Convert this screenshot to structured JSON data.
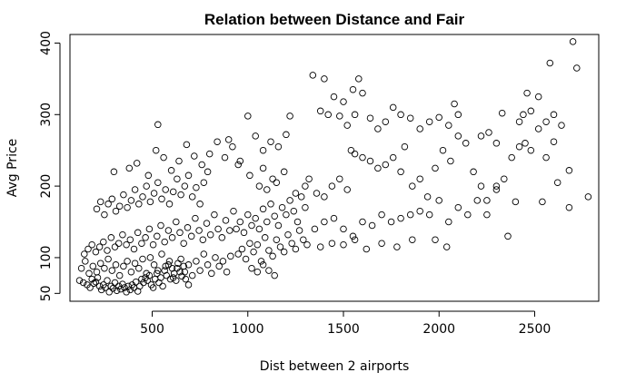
{
  "chart_data": {
    "type": "scatter",
    "title": "Relation between Distance and Fair",
    "xlabel": "Dist between 2 airports",
    "ylabel": "Avg Price",
    "xlim": [
      70,
      2835
    ],
    "ylim": [
      39,
      412
    ],
    "x_ticks": [
      500,
      1000,
      1500,
      2000,
      2500
    ],
    "y_ticks": [
      50,
      100,
      200,
      300,
      400
    ],
    "grid": false,
    "marker": "open-circle",
    "points": [
      [
        120,
        68
      ],
      [
        140,
        65
      ],
      [
        160,
        62
      ],
      [
        175,
        58
      ],
      [
        185,
        70
      ],
      [
        195,
        64
      ],
      [
        205,
        66
      ],
      [
        215,
        72
      ],
      [
        225,
        60
      ],
      [
        235,
        55
      ],
      [
        245,
        62
      ],
      [
        255,
        58
      ],
      [
        265,
        68
      ],
      [
        275,
        52
      ],
      [
        285,
        60
      ],
      [
        295,
        57
      ],
      [
        305,
        65
      ],
      [
        315,
        54
      ],
      [
        325,
        60
      ],
      [
        335,
        56
      ],
      [
        345,
        63
      ],
      [
        355,
        58
      ],
      [
        365,
        52
      ],
      [
        375,
        60
      ],
      [
        385,
        55
      ],
      [
        395,
        62
      ],
      [
        405,
        58
      ],
      [
        415,
        66
      ],
      [
        425,
        53
      ],
      [
        435,
        60
      ],
      [
        445,
        70
      ],
      [
        455,
        65
      ],
      [
        465,
        72
      ],
      [
        475,
        68
      ],
      [
        485,
        75
      ],
      [
        495,
        62
      ],
      [
        505,
        58
      ],
      [
        515,
        70
      ],
      [
        525,
        78
      ],
      [
        535,
        65
      ],
      [
        545,
        72
      ],
      [
        555,
        60
      ],
      [
        565,
        82
      ],
      [
        575,
        75
      ],
      [
        585,
        90
      ],
      [
        595,
        70
      ],
      [
        605,
        85
      ],
      [
        615,
        78
      ],
      [
        625,
        68
      ],
      [
        635,
        92
      ],
      [
        645,
        80
      ],
      [
        655,
        74
      ],
      [
        665,
        88
      ],
      [
        675,
        70
      ],
      [
        690,
        62
      ],
      [
        130,
        85
      ],
      [
        150,
        95
      ],
      [
        170,
        78
      ],
      [
        190,
        88
      ],
      [
        210,
        80
      ],
      [
        230,
        92
      ],
      [
        250,
        85
      ],
      [
        270,
        98
      ],
      [
        290,
        82
      ],
      [
        310,
        90
      ],
      [
        330,
        75
      ],
      [
        350,
        88
      ],
      [
        370,
        95
      ],
      [
        390,
        80
      ],
      [
        410,
        92
      ],
      [
        430,
        85
      ],
      [
        450,
        98
      ],
      [
        470,
        78
      ],
      [
        490,
        100
      ],
      [
        510,
        90
      ],
      [
        530,
        82
      ],
      [
        550,
        105
      ],
      [
        570,
        88
      ],
      [
        590,
        95
      ],
      [
        610,
        72
      ],
      [
        630,
        85
      ],
      [
        650,
        98
      ],
      [
        670,
        80
      ],
      [
        690,
        90
      ],
      [
        710,
        75
      ],
      [
        730,
        95
      ],
      [
        750,
        82
      ],
      [
        770,
        105
      ],
      [
        790,
        90
      ],
      [
        810,
        78
      ],
      [
        830,
        100
      ],
      [
        850,
        88
      ],
      [
        870,
        95
      ],
      [
        890,
        80
      ],
      [
        910,
        102
      ],
      [
        145,
        105
      ],
      [
        165,
        112
      ],
      [
        185,
        118
      ],
      [
        205,
        108
      ],
      [
        225,
        115
      ],
      [
        245,
        122
      ],
      [
        265,
        110
      ],
      [
        285,
        128
      ],
      [
        305,
        115
      ],
      [
        325,
        120
      ],
      [
        345,
        132
      ],
      [
        365,
        118
      ],
      [
        385,
        125
      ],
      [
        405,
        112
      ],
      [
        425,
        135
      ],
      [
        445,
        120
      ],
      [
        465,
        128
      ],
      [
        485,
        140
      ],
      [
        505,
        118
      ],
      [
        525,
        130
      ],
      [
        545,
        145
      ],
      [
        565,
        122
      ],
      [
        585,
        138
      ],
      [
        605,
        128
      ],
      [
        625,
        150
      ],
      [
        645,
        135
      ],
      [
        665,
        120
      ],
      [
        685,
        142
      ],
      [
        705,
        130
      ],
      [
        725,
        155
      ],
      [
        745,
        138
      ],
      [
        765,
        125
      ],
      [
        785,
        148
      ],
      [
        805,
        132
      ],
      [
        825,
        160
      ],
      [
        845,
        140
      ],
      [
        865,
        128
      ],
      [
        885,
        152
      ],
      [
        905,
        138
      ],
      [
        925,
        165
      ],
      [
        210,
        168
      ],
      [
        230,
        178
      ],
      [
        250,
        160
      ],
      [
        270,
        175
      ],
      [
        290,
        182
      ],
      [
        310,
        165
      ],
      [
        330,
        172
      ],
      [
        350,
        188
      ],
      [
        370,
        170
      ],
      [
        390,
        180
      ],
      [
        410,
        195
      ],
      [
        430,
        175
      ],
      [
        450,
        185
      ],
      [
        470,
        200
      ],
      [
        490,
        178
      ],
      [
        510,
        190
      ],
      [
        530,
        205
      ],
      [
        550,
        182
      ],
      [
        570,
        195
      ],
      [
        590,
        175
      ],
      [
        610,
        192
      ],
      [
        630,
        210
      ],
      [
        650,
        188
      ],
      [
        670,
        200
      ],
      [
        690,
        215
      ],
      [
        710,
        185
      ],
      [
        730,
        198
      ],
      [
        750,
        175
      ],
      [
        770,
        205
      ],
      [
        790,
        220
      ],
      [
        300,
        220
      ],
      [
        380,
        225
      ],
      [
        420,
        232
      ],
      [
        480,
        215
      ],
      [
        520,
        250
      ],
      [
        560,
        240
      ],
      [
        600,
        222
      ],
      [
        640,
        235
      ],
      [
        680,
        258
      ],
      [
        720,
        242
      ],
      [
        760,
        230
      ],
      [
        800,
        245
      ],
      [
        840,
        262
      ],
      [
        880,
        240
      ],
      [
        920,
        255
      ],
      [
        960,
        235
      ],
      [
        1000,
        298
      ],
      [
        1040,
        270
      ],
      [
        1080,
        250
      ],
      [
        1120,
        262
      ],
      [
        1160,
        255
      ],
      [
        1200,
        272
      ],
      [
        1220,
        298
      ],
      [
        530,
        286
      ],
      [
        900,
        265
      ],
      [
        950,
        105
      ],
      [
        970,
        112
      ],
      [
        990,
        98
      ],
      [
        1010,
        120
      ],
      [
        1030,
        108
      ],
      [
        1050,
        118
      ],
      [
        1070,
        95
      ],
      [
        1090,
        128
      ],
      [
        1110,
        110
      ],
      [
        1130,
        102
      ],
      [
        1150,
        125
      ],
      [
        1170,
        115
      ],
      [
        1190,
        108
      ],
      [
        1210,
        132
      ],
      [
        1230,
        120
      ],
      [
        1250,
        112
      ],
      [
        1270,
        138
      ],
      [
        1290,
        125
      ],
      [
        1310,
        118
      ],
      [
        940,
        140
      ],
      [
        960,
        150
      ],
      [
        980,
        135
      ],
      [
        1000,
        160
      ],
      [
        1020,
        145
      ],
      [
        1040,
        155
      ],
      [
        1060,
        140
      ],
      [
        1080,
        168
      ],
      [
        1100,
        150
      ],
      [
        1120,
        175
      ],
      [
        1140,
        158
      ],
      [
        1160,
        145
      ],
      [
        1180,
        170
      ],
      [
        1200,
        160
      ],
      [
        1220,
        180
      ],
      [
        1240,
        165
      ],
      [
        1260,
        150
      ],
      [
        1280,
        185
      ],
      [
        1300,
        170
      ],
      [
        1020,
        85
      ],
      [
        1050,
        80
      ],
      [
        1080,
        90
      ],
      [
        1110,
        82
      ],
      [
        1140,
        75
      ],
      [
        1060,
        200
      ],
      [
        1100,
        195
      ],
      [
        1150,
        205
      ],
      [
        1250,
        190
      ],
      [
        1300,
        200
      ],
      [
        1320,
        210
      ],
      [
        1010,
        215
      ],
      [
        1080,
        225
      ],
      [
        1130,
        210
      ],
      [
        1190,
        220
      ],
      [
        950,
        230
      ],
      [
        1340,
        355
      ],
      [
        1400,
        350
      ],
      [
        1450,
        325
      ],
      [
        1500,
        318
      ],
      [
        1550,
        335
      ],
      [
        1580,
        350
      ],
      [
        1600,
        330
      ],
      [
        1380,
        305
      ],
      [
        1420,
        300
      ],
      [
        1480,
        298
      ],
      [
        1520,
        285
      ],
      [
        1560,
        300
      ],
      [
        1640,
        295
      ],
      [
        1680,
        280
      ],
      [
        1720,
        290
      ],
      [
        1760,
        310
      ],
      [
        1800,
        300
      ],
      [
        1850,
        295
      ],
      [
        1900,
        280
      ],
      [
        1950,
        290
      ],
      [
        2000,
        296
      ],
      [
        2050,
        285
      ],
      [
        2080,
        315
      ],
      [
        2100,
        300
      ],
      [
        1360,
        190
      ],
      [
        1400,
        185
      ],
      [
        1440,
        200
      ],
      [
        1480,
        210
      ],
      [
        1520,
        195
      ],
      [
        1540,
        250
      ],
      [
        1560,
        245
      ],
      [
        1600,
        240
      ],
      [
        1640,
        235
      ],
      [
        1680,
        225
      ],
      [
        1720,
        230
      ],
      [
        1760,
        240
      ],
      [
        1800,
        220
      ],
      [
        1820,
        255
      ],
      [
        1860,
        200
      ],
      [
        1900,
        210
      ],
      [
        1940,
        185
      ],
      [
        1980,
        225
      ],
      [
        2020,
        250
      ],
      [
        2060,
        235
      ],
      [
        2100,
        270
      ],
      [
        2140,
        260
      ],
      [
        2180,
        220
      ],
      [
        2220,
        270
      ],
      [
        2260,
        275
      ],
      [
        2300,
        260
      ],
      [
        1350,
        140
      ],
      [
        1400,
        150
      ],
      [
        1450,
        155
      ],
      [
        1500,
        140
      ],
      [
        1550,
        130
      ],
      [
        1600,
        150
      ],
      [
        1650,
        145
      ],
      [
        1700,
        160
      ],
      [
        1750,
        150
      ],
      [
        1800,
        155
      ],
      [
        1850,
        160
      ],
      [
        1900,
        165
      ],
      [
        1950,
        160
      ],
      [
        2000,
        180
      ],
      [
        2050,
        150
      ],
      [
        2100,
        170
      ],
      [
        2150,
        160
      ],
      [
        2200,
        180
      ],
      [
        2250,
        160
      ],
      [
        2300,
        200
      ],
      [
        1380,
        115
      ],
      [
        1440,
        120
      ],
      [
        1500,
        118
      ],
      [
        1560,
        125
      ],
      [
        1620,
        112
      ],
      [
        1700,
        120
      ],
      [
        1780,
        115
      ],
      [
        1860,
        125
      ],
      [
        1980,
        125
      ],
      [
        2040,
        115
      ],
      [
        2250,
        180
      ],
      [
        2300,
        195
      ],
      [
        2340,
        210
      ],
      [
        2380,
        240
      ],
      [
        2420,
        255
      ],
      [
        2450,
        260
      ],
      [
        2480,
        250
      ],
      [
        2520,
        280
      ],
      [
        2560,
        290
      ],
      [
        2600,
        300
      ],
      [
        2440,
        300
      ],
      [
        2480,
        305
      ],
      [
        2520,
        325
      ],
      [
        2560,
        240
      ],
      [
        2600,
        262
      ],
      [
        2640,
        285
      ],
      [
        2680,
        222
      ],
      [
        2700,
        402
      ],
      [
        2720,
        365
      ],
      [
        2580,
        372
      ],
      [
        2460,
        330
      ],
      [
        2400,
        178
      ],
      [
        2360,
        130
      ],
      [
        2420,
        290
      ],
      [
        2540,
        178
      ],
      [
        2620,
        205
      ],
      [
        2680,
        170
      ],
      [
        2780,
        185
      ],
      [
        2330,
        302
      ],
      [
        2220,
        200
      ]
    ]
  }
}
